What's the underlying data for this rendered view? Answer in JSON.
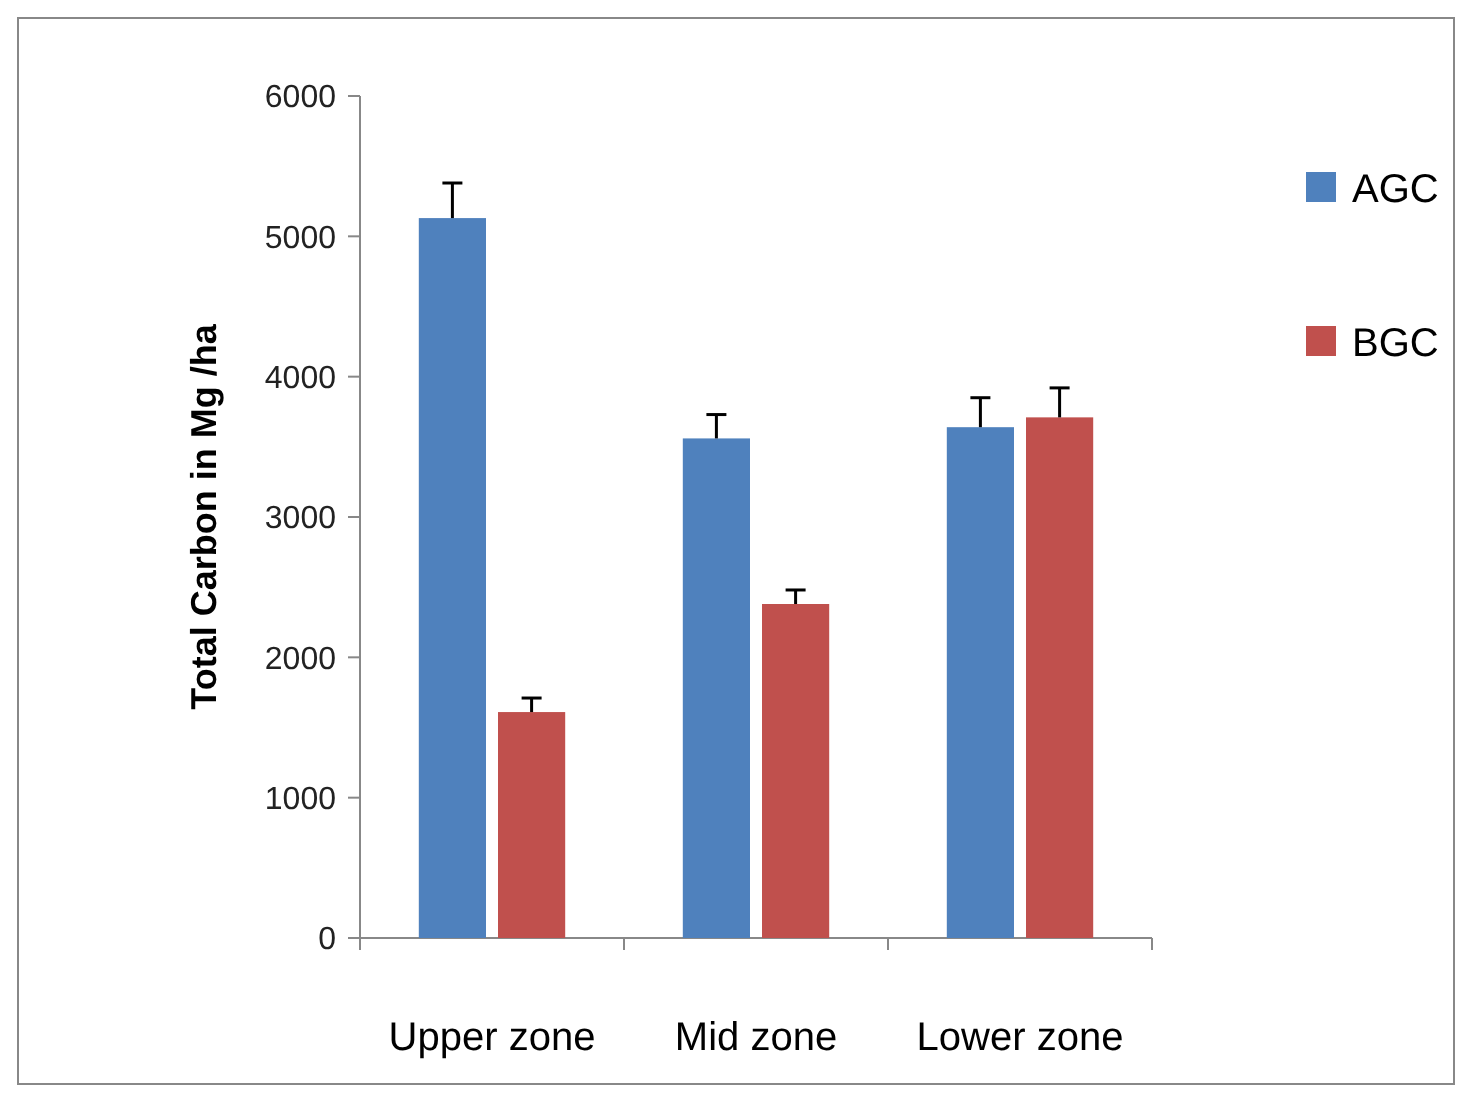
{
  "chart_data": {
    "type": "bar",
    "ylabel": "Total Carbon in Mg /ha",
    "categories": [
      "Upper zone",
      "Mid zone",
      "Lower zone"
    ],
    "series": [
      {
        "name": "AGC",
        "color": "#4f81bd",
        "values": [
          5130,
          3560,
          3640
        ],
        "errors": [
          250,
          170,
          210
        ]
      },
      {
        "name": "BGC",
        "color": "#c0504d",
        "values": [
          1610,
          2380,
          3710
        ],
        "errors": [
          100,
          100,
          210
        ]
      }
    ],
    "ylim": [
      0,
      6000
    ],
    "yticks": [
      0,
      1000,
      2000,
      3000,
      4000,
      5000,
      6000
    ],
    "grid": false,
    "legend": "right"
  }
}
